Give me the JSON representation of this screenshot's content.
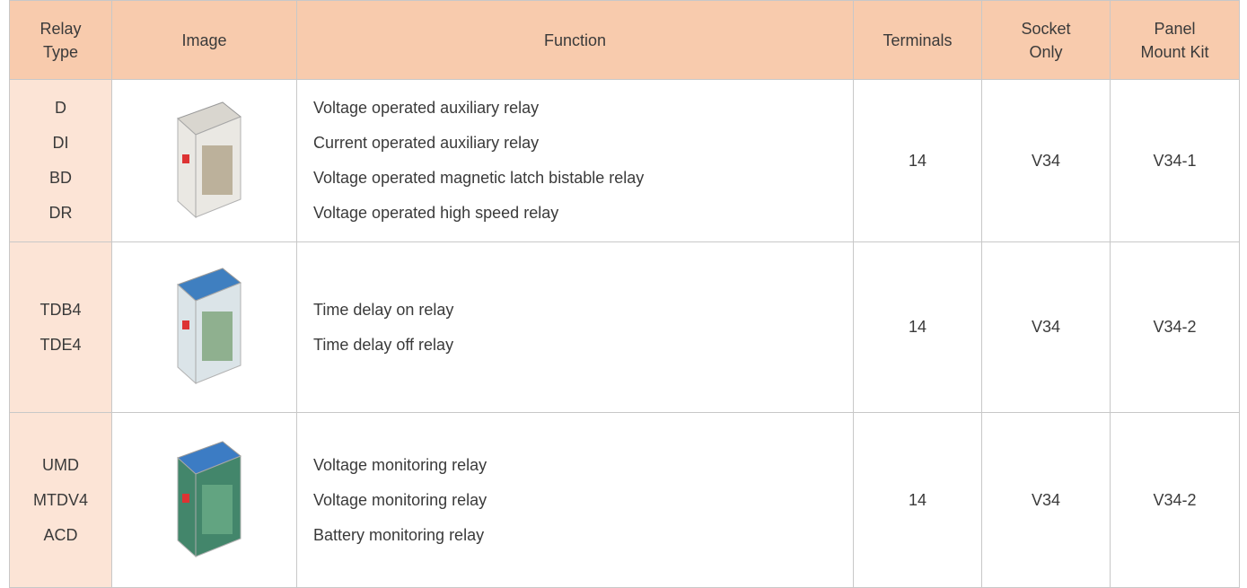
{
  "table": {
    "header": [
      [
        "Relay",
        "Type"
      ],
      [
        "Image"
      ],
      [
        "Function"
      ],
      [
        "Terminals"
      ],
      [
        "Socket",
        "Only"
      ],
      [
        "Panel",
        "Mount Kit"
      ]
    ],
    "rows": [
      {
        "relay_types": [
          "D",
          "DI",
          "BD",
          "DR"
        ],
        "functions": [
          "Voltage operated auxiliary relay",
          "Current operated auxiliary relay",
          "Voltage operated magnetic latch bistable relay",
          "Voltage operated high speed relay"
        ],
        "terminals": 14,
        "socket": "V34",
        "panel_kit": "V34-1"
      },
      {
        "relay_types": [
          "TDB4",
          "TDE4"
        ],
        "functions": [
          "Time delay on relay",
          "Time delay off relay"
        ],
        "terminals": 14,
        "socket": "V34",
        "panel_kit": "V34-2"
      },
      {
        "relay_types": [
          "UMD",
          "MTDV4",
          "ACD"
        ],
        "functions": [
          "Voltage monitoring relay",
          "Voltage monitoring relay",
          "Battery monitoring relay"
        ],
        "terminals": 14,
        "socket": "V34",
        "panel_kit": "V34-2"
      }
    ]
  }
}
